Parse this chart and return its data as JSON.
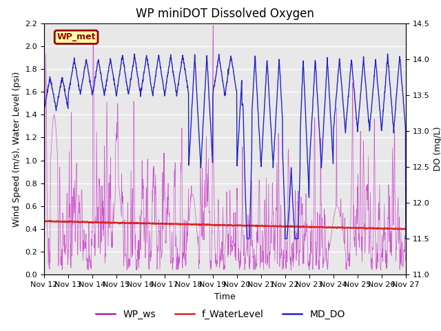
{
  "title": "WP miniDOT Dissolved Oxygen",
  "xlabel": "Time",
  "ylabel_left": "Wind Speed (m/s), Water Level (psi)",
  "ylabel_right": "DO (mg/L)",
  "ylim_left": [
    0.0,
    2.2
  ],
  "ylim_right": [
    11.0,
    14.5
  ],
  "xtick_labels": [
    "Nov 12",
    "Nov 13",
    "Nov 14",
    "Nov 15",
    "Nov 16",
    "Nov 17",
    "Nov 18",
    "Nov 19",
    "Nov 20",
    "Nov 21",
    "Nov 22",
    "Nov 23",
    "Nov 24",
    "Nov 25",
    "Nov 26",
    "Nov 27"
  ],
  "yticks_left": [
    0.0,
    0.2,
    0.4,
    0.6,
    0.8,
    1.0,
    1.2,
    1.4,
    1.6,
    1.8,
    2.0,
    2.2
  ],
  "yticks_right": [
    11.0,
    11.5,
    12.0,
    12.5,
    13.0,
    13.5,
    14.0,
    14.5
  ],
  "wp_ws_color": "#cc44cc",
  "f_waterlevel_color": "#dd2222",
  "md_do_color": "#2222cc",
  "wp_met_box_color": "#990000",
  "wp_met_box_fill": "#ffffaa",
  "background_color": "#e8e8e8",
  "grid_color": "#ffffff",
  "legend_colors": [
    "#aa22aa",
    "#dd2222",
    "#2222cc"
  ],
  "title_fontsize": 12,
  "label_fontsize": 9,
  "tick_fontsize": 8,
  "legend_fontsize": 10
}
